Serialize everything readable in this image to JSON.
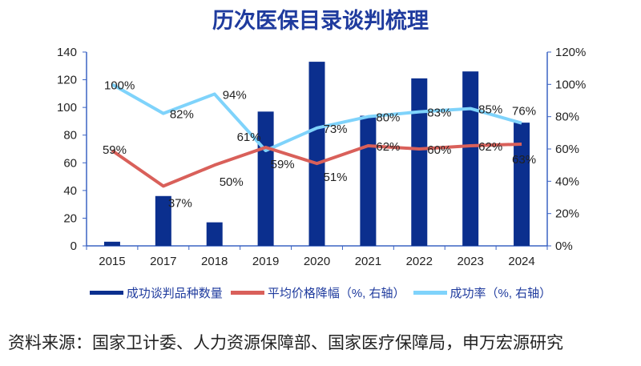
{
  "title": "历次医保目录谈判梳理",
  "source": "资料来源：国家卫计委、人力资源保障部、国家医疗保障局，申万宏源研究",
  "chart_data": {
    "type": "bar+line",
    "categories": [
      "2015",
      "2017",
      "2018",
      "2019",
      "2020",
      "2021",
      "2022",
      "2023",
      "2024"
    ],
    "left_axis": {
      "ylim": [
        0,
        140
      ],
      "ticks": [
        0,
        20,
        40,
        60,
        80,
        100,
        120,
        140
      ]
    },
    "right_axis": {
      "ylim": [
        0,
        120
      ],
      "ticks": [
        "0%",
        "20%",
        "40%",
        "60%",
        "80%",
        "100%",
        "120%"
      ]
    },
    "series": [
      {
        "name": "成功谈判品种数量",
        "type": "bar",
        "axis": "left",
        "color": "#0b2f8e",
        "values": [
          3,
          36,
          17,
          97,
          133,
          94,
          121,
          126,
          89
        ]
      },
      {
        "name": "平均价格降幅（%, 右轴）",
        "type": "line",
        "axis": "right",
        "color": "#d9605a",
        "values": [
          59,
          37,
          50,
          61,
          51,
          62,
          60,
          62,
          63
        ],
        "labels": [
          "59%",
          "37%",
          "50%",
          "61%",
          "51%",
          "62%",
          "60%",
          "62%",
          "63%"
        ]
      },
      {
        "name": "成功率（%, 右轴）",
        "type": "line",
        "axis": "right",
        "color": "#7fd3fb",
        "values": [
          100,
          82,
          94,
          59,
          73,
          80,
          83,
          85,
          76
        ],
        "labels": [
          "100%",
          "82%",
          "94%",
          "59%",
          "73%",
          "80%",
          "83%",
          "85%",
          "76%"
        ]
      }
    ],
    "legend": "bottom",
    "grid": false
  }
}
